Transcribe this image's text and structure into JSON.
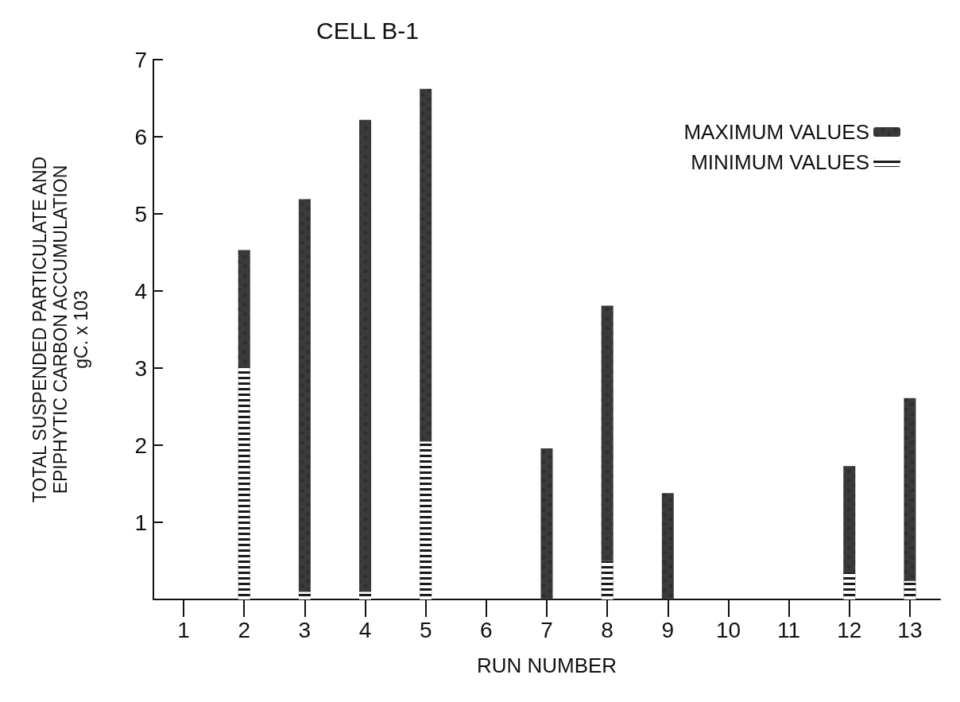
{
  "chart_data": {
    "type": "bar",
    "title": "CELL B-1",
    "xlabel": "RUN NUMBER",
    "ylabel": "TOTAL SUSPENDED PARTICULATE AND\nEPIPHYTIC CARBON ACCUMULATION\ngC. x 103",
    "categories": [
      "1",
      "2",
      "3",
      "4",
      "5",
      "6",
      "7",
      "8",
      "9",
      "10",
      "11",
      "12",
      "13"
    ],
    "stacked": true,
    "series": [
      {
        "name": "MINIMUM VALUES",
        "color": "#1a1a1a",
        "values": [
          null,
          3.0,
          0.1,
          0.1,
          2.05,
          null,
          null,
          0.5,
          null,
          null,
          null,
          0.35,
          0.24
        ]
      },
      {
        "name": "MAXIMUM VALUES",
        "color": "#3a3a3a",
        "values": [
          null,
          1.53,
          5.09,
          6.12,
          4.57,
          null,
          1.96,
          3.31,
          1.38,
          null,
          null,
          1.38,
          2.37
        ]
      }
    ],
    "ylim": [
      0,
      7
    ],
    "yticks": [
      1,
      2,
      3,
      4,
      5,
      6,
      7
    ],
    "grid": false,
    "legend": "top right"
  }
}
